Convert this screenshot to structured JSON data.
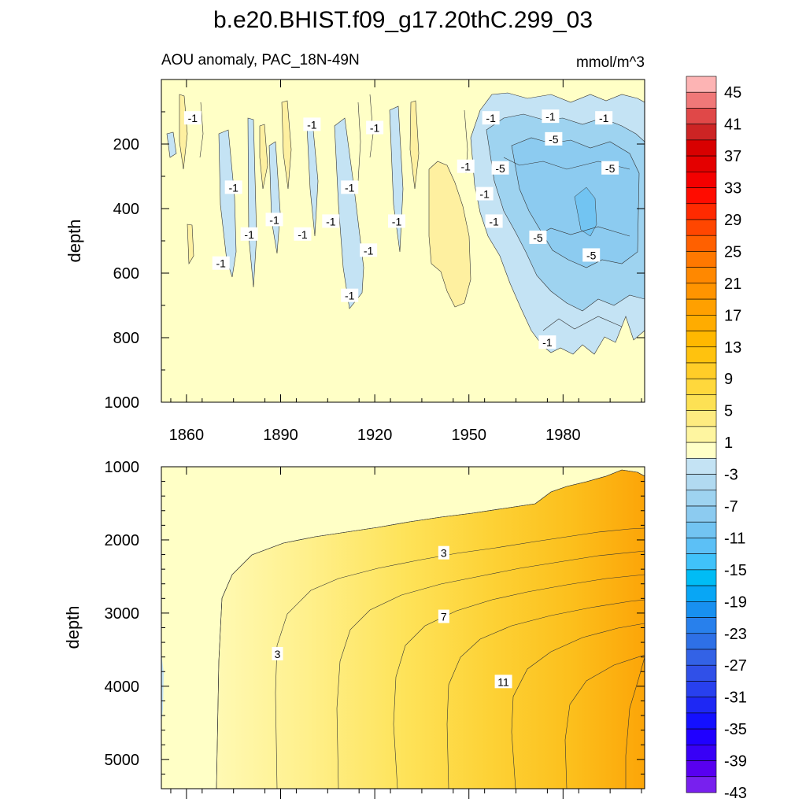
{
  "figure": {
    "title": "b.e20.BHIST.f09_g17.20thC.299_03",
    "subtitle_left": "AOU anomaly, PAC_18N-49N",
    "subtitle_right": "mmol/m^3"
  },
  "chart_data": [
    {
      "type": "heatmap",
      "panel": "upper",
      "ylabel": "depth",
      "xlabel": "",
      "xlim": [
        1852,
        2006
      ],
      "ylim": [
        1000,
        0
      ],
      "x_ticks": [
        1860,
        1890,
        1920,
        1950,
        1980
      ],
      "y_ticks": [
        200,
        400,
        600,
        800,
        1000
      ],
      "contour_labels": [
        {
          "text": "-1",
          "x": 1862,
          "y": 120
        },
        {
          "text": "-1",
          "x": 1900,
          "y": 140
        },
        {
          "text": "-1",
          "x": 1920,
          "y": 150
        },
        {
          "text": "-1",
          "x": 1957,
          "y": 120
        },
        {
          "text": "-1",
          "x": 1976,
          "y": 115
        },
        {
          "text": "-1",
          "x": 1993,
          "y": 120
        },
        {
          "text": "-5",
          "x": 1977,
          "y": 185
        },
        {
          "text": "-1",
          "x": 1949,
          "y": 270
        },
        {
          "text": "-5",
          "x": 1960,
          "y": 275
        },
        {
          "text": "-5",
          "x": 1995,
          "y": 275
        },
        {
          "text": "-1",
          "x": 1875,
          "y": 335
        },
        {
          "text": "-1",
          "x": 1912,
          "y": 335
        },
        {
          "text": "-1",
          "x": 1955,
          "y": 355
        },
        {
          "text": "-1",
          "x": 1888,
          "y": 435
        },
        {
          "text": "-1",
          "x": 1906,
          "y": 440
        },
        {
          "text": "-1",
          "x": 1927,
          "y": 440
        },
        {
          "text": "-1",
          "x": 1958,
          "y": 440
        },
        {
          "text": "-1",
          "x": 1880,
          "y": 480
        },
        {
          "text": "-1",
          "x": 1897,
          "y": 480
        },
        {
          "text": "-5",
          "x": 1972,
          "y": 490
        },
        {
          "text": "-1",
          "x": 1918,
          "y": 530
        },
        {
          "text": "-5",
          "x": 1989,
          "y": 545
        },
        {
          "text": "-1",
          "x": 1871,
          "y": 570
        },
        {
          "text": "-1",
          "x": 1912,
          "y": 670
        },
        {
          "text": "-1",
          "x": 1975,
          "y": 815
        }
      ]
    },
    {
      "type": "heatmap",
      "panel": "lower",
      "ylabel": "depth",
      "xlabel": "",
      "xlim": [
        1852,
        2006
      ],
      "ylim": [
        5400,
        1000
      ],
      "y_ticks": [
        1000,
        2000,
        3000,
        4000,
        5000
      ],
      "contour_labels": [
        {
          "text": "3",
          "x": 1942,
          "y": 2180
        },
        {
          "text": "7",
          "x": 1942,
          "y": 3050
        },
        {
          "text": "3",
          "x": 1889,
          "y": 3560
        },
        {
          "text": "11",
          "x": 1961,
          "y": 3940
        }
      ]
    }
  ],
  "colorbar": {
    "labels": [
      "45",
      "41",
      "37",
      "33",
      "29",
      "25",
      "21",
      "17",
      "13",
      "9",
      "5",
      "1",
      "-3",
      "-7",
      "-11",
      "-15",
      "-19",
      "-23",
      "-27",
      "-31",
      "-35",
      "-39",
      "-43"
    ],
    "colors": [
      "#fdb4b4",
      "#f07878",
      "#e04848",
      "#cd2424",
      "#d80000",
      "#e40000",
      "#f40000",
      "#ff0c00",
      "#ff2a00",
      "#ff4600",
      "#ff6000",
      "#ff7800",
      "#ff8800",
      "#ff9400",
      "#ffa000",
      "#ffac00",
      "#ffb800",
      "#ffc20e",
      "#ffcd28",
      "#ffd83c",
      "#fde154",
      "#feeb80",
      "#fef5a0",
      "#ffffc7",
      "#c4e3f4",
      "#b1daf1",
      "#9ed3f0",
      "#8ccbf0",
      "#72c4f2",
      "#5cc0f6",
      "#40c2fa",
      "#00bcf5",
      "#08a6f5",
      "#1890f0",
      "#2880ec",
      "#2e70e6",
      "#3362e6",
      "#3050e8",
      "#2840ee",
      "#1e28f4",
      "#1410ff",
      "#2000ff",
      "#3800f6",
      "#5800f0",
      "#7820ee"
    ]
  }
}
